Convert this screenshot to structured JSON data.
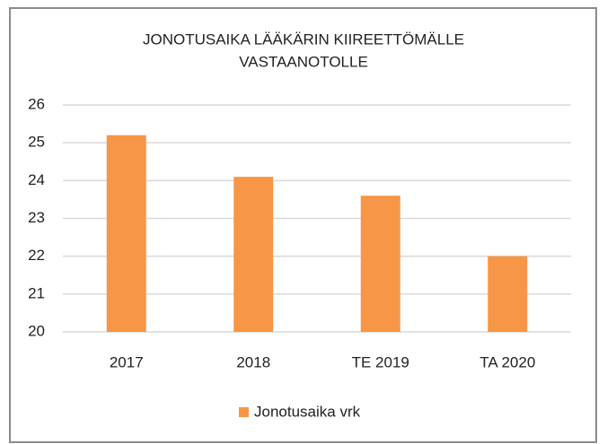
{
  "chart_data": {
    "type": "bar",
    "title": [
      "JONOTUSAIKA  LÄÄKÄRIN KIIREETTÖMÄLLE",
      "VASTAANOTOLLE"
    ],
    "categories": [
      "2017",
      "2018",
      "TE 2019",
      "TA 2020"
    ],
    "series": [
      {
        "name": "Jonotusaika vrk",
        "color": "#f79646",
        "values": [
          25.2,
          24.1,
          23.6,
          22.0
        ]
      }
    ],
    "ylim": [
      20,
      26
    ],
    "yticks": [
      20,
      21,
      22,
      23,
      24,
      25,
      26
    ],
    "grid": true,
    "legend": "bottom"
  }
}
